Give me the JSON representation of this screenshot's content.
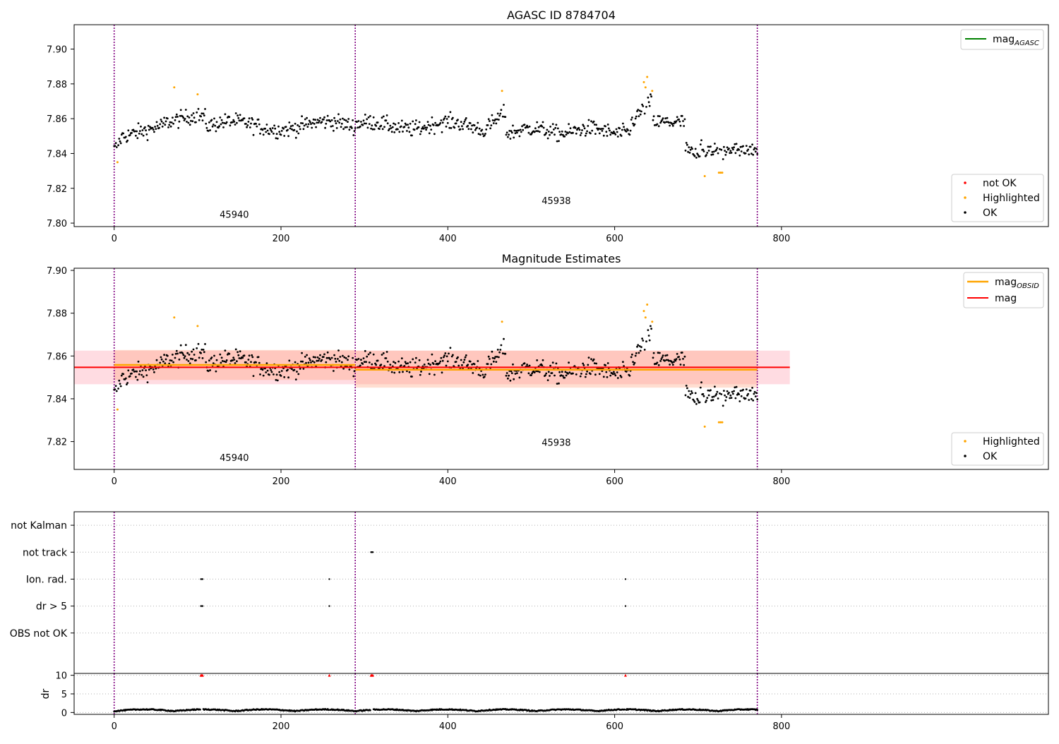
{
  "colors": {
    "ok": "#000000",
    "highlighted": "#ffa500",
    "not_ok": "#ff0000",
    "mag_agasc": "#008000",
    "mag_obsid": "#ffa500",
    "mag": "#ff0000",
    "band_mag": "#ffc0cb",
    "band_obsid": "#ffa07a",
    "obs_boundary": "#800080",
    "grid": "#b0b0b0"
  },
  "chart_data": [
    {
      "type": "scatter",
      "title": "AGASC ID 8784704",
      "xlabel": "",
      "ylabel": "",
      "xlim": [
        -48,
        1120
      ],
      "ylim": [
        7.798,
        7.914
      ],
      "xticks": [
        "0",
        "200",
        "400",
        "600",
        "800"
      ],
      "yticks": [
        "7.80",
        "7.82",
        "7.84",
        "7.86",
        "7.88",
        "7.90"
      ],
      "legend_lines": [
        {
          "name": "mag_AGASC",
          "label_main": "mag",
          "label_sub": "AGASC",
          "position": "upper-right"
        }
      ],
      "legend_points": [
        {
          "name": "not OK",
          "label": "not OK"
        },
        {
          "name": "Highlighted",
          "label": "Highlighted"
        },
        {
          "name": "OK",
          "label": "OK"
        }
      ],
      "obs_boundaries": [
        0,
        289,
        771
      ],
      "obsids": [
        {
          "label": "45940",
          "x": 144,
          "y": 7.803
        },
        {
          "label": "45938",
          "x": 530,
          "y": 7.811
        }
      ],
      "series": [
        {
          "name": "OK",
          "n_points": 772,
          "mean": 7.855,
          "y_range": [
            7.833,
            7.873
          ]
        }
      ],
      "highlighted": [
        {
          "x": 4,
          "y": 7.835
        },
        {
          "x": 72,
          "y": 7.878
        },
        {
          "x": 100,
          "y": 7.874
        },
        {
          "x": 465,
          "y": 7.876
        },
        {
          "x": 635,
          "y": 7.881
        },
        {
          "x": 637,
          "y": 7.878
        },
        {
          "x": 639,
          "y": 7.884
        },
        {
          "x": 645,
          "y": 7.876
        },
        {
          "x": 708,
          "y": 7.827
        },
        {
          "x": 725,
          "y": 7.829
        },
        {
          "x": 727,
          "y": 7.829
        },
        {
          "x": 729,
          "y": 7.829
        }
      ]
    },
    {
      "type": "scatter",
      "title": "Magnitude Estimates",
      "xlabel": "",
      "ylabel": "",
      "xlim": [
        -48,
        1120
      ],
      "ylim": [
        7.807,
        7.901
      ],
      "xticks": [
        "0",
        "200",
        "400",
        "600",
        "800"
      ],
      "yticks": [
        "7.82",
        "7.84",
        "7.86",
        "7.88",
        "7.90"
      ],
      "legend_lines": [
        {
          "name": "mag_OBSID",
          "label_main": "mag",
          "label_sub": "OBSID",
          "position": "upper-right"
        },
        {
          "name": "mag",
          "label_main": "mag",
          "label_sub": "",
          "position": "upper-right"
        }
      ],
      "legend_points": [
        {
          "name": "Highlighted",
          "label": "Highlighted"
        },
        {
          "name": "OK",
          "label": "OK"
        }
      ],
      "mag_line": {
        "value": 7.8547,
        "band": [
          7.8468,
          7.8625
        ],
        "x_range": [
          -48,
          810
        ]
      },
      "obsid_lines": [
        {
          "obsid": "45940",
          "x_range": [
            0,
            289
          ],
          "value": 7.8558,
          "band": [
            7.8488,
            7.8628
          ]
        },
        {
          "obsid": "45938",
          "x_range": [
            289,
            771
          ],
          "value": 7.8536,
          "band": [
            7.8452,
            7.8625
          ]
        }
      ],
      "obs_boundaries": [
        0,
        289,
        771
      ],
      "obsids": [
        {
          "label": "45940",
          "x": 144,
          "y": 7.811
        },
        {
          "label": "45938",
          "x": 530,
          "y": 7.818
        }
      ]
    },
    {
      "type": "scatter",
      "title": "",
      "xlim": [
        -48,
        1120
      ],
      "ylim": [
        -0.5,
        5.5
      ],
      "xticks": [
        "0",
        "200",
        "400",
        "600",
        "800"
      ],
      "flag_rows": [
        {
          "label": "OBS not OK",
          "points": []
        },
        {
          "label": "dr > 5",
          "points": [
            104,
            105,
            106,
            258,
            613
          ]
        },
        {
          "label": "Ion. rad.",
          "points": [
            104,
            105,
            106,
            258,
            613
          ]
        },
        {
          "label": "not track",
          "points": [
            308,
            309,
            310
          ]
        },
        {
          "label": "not Kalman",
          "points": []
        }
      ],
      "obs_boundaries": [
        0,
        289,
        771
      ]
    },
    {
      "type": "scatter",
      "title": "",
      "xlabel": "",
      "ylabel": "dr",
      "xlim": [
        -48,
        1120
      ],
      "ylim": [
        -0.5,
        10.5
      ],
      "xticks": [
        "0",
        "200",
        "400",
        "600",
        "800"
      ],
      "yticks": [
        "0",
        "5",
        "10"
      ],
      "clipped_points": [
        104,
        105,
        106,
        258,
        308,
        309,
        310,
        613
      ],
      "series": [
        {
          "name": "dr",
          "n_points": 772,
          "y_range": [
            0.0,
            1.0
          ]
        }
      ],
      "obs_boundaries": [
        0,
        289,
        771
      ]
    }
  ]
}
